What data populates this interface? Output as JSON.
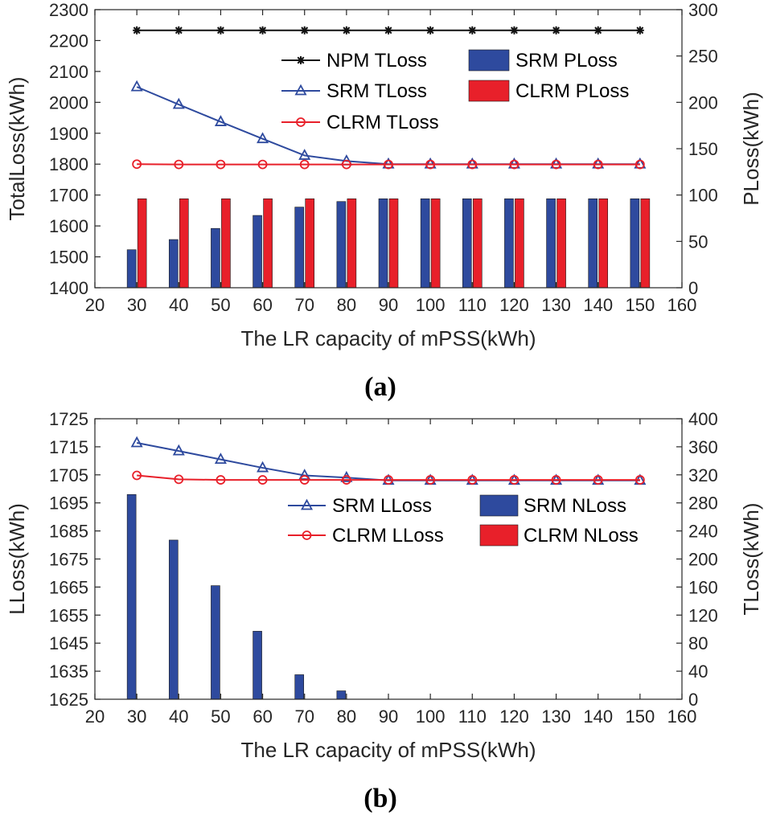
{
  "colors": {
    "srm": "#2e4a9e",
    "clrm": "#e8202a",
    "npm": "#111111",
    "axis": "#262626"
  },
  "chart_data": [
    {
      "type": "bar+line",
      "panel_label": "(a)",
      "xlabel": "The LR capacity of mPSS(kWh)",
      "ylabel_left": "TotalLoss(kWh)",
      "ylabel_right": "PLoss(kWh)",
      "xlim": [
        20,
        160
      ],
      "xticks": [
        "20",
        "30",
        "40",
        "50",
        "60",
        "70",
        "80",
        "90",
        "100",
        "110",
        "120",
        "130",
        "140",
        "150",
        "160"
      ],
      "ylim_left": [
        1400,
        2300
      ],
      "yticks_left": [
        "1400",
        "1500",
        "1600",
        "1700",
        "1800",
        "1900",
        "2000",
        "2100",
        "2200",
        "2300"
      ],
      "ylim_right": [
        0,
        300
      ],
      "yticks_right": [
        "0",
        "50",
        "100",
        "150",
        "200",
        "250",
        "300"
      ],
      "x": [
        30,
        40,
        50,
        60,
        70,
        80,
        90,
        100,
        110,
        120,
        130,
        140,
        150
      ],
      "lines": [
        {
          "name": "NPM TLoss",
          "color": "npm",
          "marker": "star",
          "values": [
            2233,
            2233,
            2233,
            2233,
            2233,
            2233,
            2233,
            2233,
            2233,
            2233,
            2233,
            2233,
            2233
          ]
        },
        {
          "name": "SRM TLoss",
          "color": "srm",
          "marker": "triangle",
          "values": [
            2050,
            1993,
            1937,
            1882,
            1828,
            1810,
            1800,
            1800,
            1800,
            1800,
            1800,
            1800,
            1800
          ]
        },
        {
          "name": "CLRM TLoss",
          "color": "clrm",
          "marker": "circle",
          "values": [
            1800,
            1799,
            1799,
            1799,
            1799,
            1799,
            1799,
            1799,
            1799,
            1799,
            1799,
            1799,
            1799
          ]
        }
      ],
      "bars": [
        {
          "name": "SRM PLoss",
          "color": "srm",
          "values": [
            41,
            52,
            64,
            78,
            87,
            93,
            96,
            96,
            96,
            96,
            96,
            96,
            96
          ]
        },
        {
          "name": "CLRM PLoss",
          "color": "clrm",
          "values": [
            96,
            96,
            96,
            96,
            96,
            96,
            96,
            96,
            96,
            96,
            96,
            96,
            96
          ]
        }
      ],
      "legend_columns": [
        [
          "NPM TLoss",
          "SRM TLoss",
          "CLRM TLoss"
        ],
        [
          "SRM PLoss",
          "CLRM PLoss"
        ]
      ]
    },
    {
      "type": "bar+line",
      "panel_label": "(b)",
      "xlabel": "The LR capacity of mPSS(kWh)",
      "ylabel_left": "LLoss(kWh)",
      "ylabel_right": "TLoss(kWh)",
      "xlim": [
        20,
        160
      ],
      "xticks": [
        "20",
        "30",
        "40",
        "50",
        "60",
        "70",
        "80",
        "90",
        "100",
        "110",
        "120",
        "130",
        "140",
        "150",
        "160"
      ],
      "ylim_left": [
        1625,
        1725
      ],
      "yticks_left": [
        "1625",
        "1635",
        "1645",
        "1655",
        "1665",
        "1675",
        "1685",
        "1695",
        "1705",
        "1715",
        "1725"
      ],
      "ylim_right": [
        0,
        400
      ],
      "yticks_right": [
        "0",
        "40",
        "80",
        "120",
        "160",
        "200",
        "240",
        "280",
        "320",
        "360",
        "400"
      ],
      "x": [
        30,
        40,
        50,
        60,
        70,
        80,
        90,
        100,
        110,
        120,
        130,
        140,
        150
      ],
      "lines": [
        {
          "name": "SRM LLoss",
          "color": "srm",
          "marker": "triangle",
          "values": [
            1716.4,
            1713.5,
            1710.5,
            1707.5,
            1704.8,
            1704,
            1703,
            1703,
            1703,
            1703,
            1703,
            1703,
            1703
          ]
        },
        {
          "name": "CLRM LLoss",
          "color": "clrm",
          "marker": "circle",
          "values": [
            1704.8,
            1703.4,
            1703.2,
            1703.2,
            1703.2,
            1703.2,
            1703.2,
            1703.2,
            1703.2,
            1703.2,
            1703.2,
            1703.2,
            1703.2
          ]
        }
      ],
      "bars": [
        {
          "name": "SRM NLoss",
          "color": "srm",
          "values": [
            292,
            227,
            162,
            97,
            35,
            12,
            0,
            0,
            0,
            0,
            0,
            0,
            0
          ]
        },
        {
          "name": "CLRM NLoss",
          "color": "clrm",
          "values": [
            0,
            0,
            0,
            0,
            0,
            0,
            0,
            0,
            0,
            0,
            0,
            0,
            0
          ]
        }
      ],
      "legend_columns": [
        [
          "SRM LLoss",
          "CLRM LLoss"
        ],
        [
          "SRM NLoss",
          "CLRM NLoss"
        ]
      ]
    }
  ]
}
